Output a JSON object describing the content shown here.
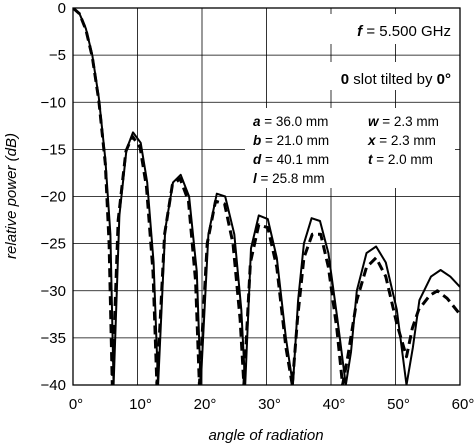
{
  "chart_data": {
    "type": "line",
    "title": "",
    "xlabel": "angle of radiation",
    "ylabel": "relative power (dB)",
    "xlim": [
      0,
      60
    ],
    "ylim": [
      -40,
      0
    ],
    "x_ticks": [
      "0°",
      "10°",
      "20°",
      "30°",
      "40°",
      "50°",
      "60°"
    ],
    "y_ticks": [
      "0",
      "−5",
      "−10",
      "−15",
      "−20",
      "−25",
      "−30",
      "−35",
      "−40"
    ],
    "grid": true,
    "frequency": {
      "symbol": "f",
      "eq": " = ",
      "value": "5.500 GHz"
    },
    "slot": {
      "count": "0",
      "middle": " slot tilted by ",
      "angle": "0°"
    },
    "params": [
      {
        "sym": "a",
        "val": " = 36.0 mm"
      },
      {
        "sym": "w",
        "val": " = 2.3 mm"
      },
      {
        "sym": "b",
        "val": " = 21.0 mm"
      },
      {
        "sym": "x",
        "val": " = 2.3 mm"
      },
      {
        "sym": "d",
        "val": " = 40.1 mm"
      },
      {
        "sym": "t",
        "val": " = 2.0 mm"
      },
      {
        "sym": "l",
        "val": " = 25.8 mm"
      }
    ],
    "series": [
      {
        "style": "solid",
        "x": [
          0,
          1,
          2,
          3,
          4,
          5,
          5.8,
          6.3,
          7.2,
          8.3,
          9.3,
          10.5,
          11.5,
          12.5,
          13.2,
          14.3,
          15.5,
          16.7,
          18.0,
          19.2,
          19.8,
          21.0,
          22.3,
          23.6,
          25.0,
          26.1,
          26.7,
          27.6,
          28.8,
          30.2,
          31.6,
          33.0,
          34.1,
          34.9,
          35.8,
          37.0,
          38.3,
          39.6,
          41.0,
          42.3,
          43.1,
          44.0,
          45.5,
          47.0,
          48.5,
          50.2,
          51.7,
          52.7,
          53.7,
          55.5,
          57.0,
          58.5,
          60.0
        ],
        "y": [
          0,
          -0.6,
          -2.2,
          -5.0,
          -9.5,
          -16.0,
          -24.0,
          -40,
          -22.0,
          -15.0,
          -13.2,
          -14.3,
          -18.5,
          -27.0,
          -40,
          -23.5,
          -18.5,
          -17.7,
          -20.0,
          -28.0,
          -40,
          -24.0,
          -19.7,
          -20.0,
          -24.0,
          -32.0,
          -40,
          -25.5,
          -22.0,
          -22.4,
          -26.5,
          -35.0,
          -40,
          -31.0,
          -25.0,
          -22.3,
          -22.6,
          -26.0,
          -33.0,
          -40,
          -36.5,
          -30.0,
          -26.0,
          -25.3,
          -27.0,
          -32.0,
          -40,
          -36.0,
          -31.0,
          -28.5,
          -27.8,
          -28.5,
          -29.6
        ]
      },
      {
        "style": "dashed",
        "x": [
          0,
          1,
          2,
          3,
          4,
          5,
          5.6,
          6.1,
          7.0,
          8.2,
          9.2,
          10.4,
          11.4,
          12.4,
          13.0,
          14.2,
          15.4,
          16.6,
          17.9,
          19.0,
          19.6,
          20.8,
          22.1,
          23.5,
          24.8,
          25.9,
          26.5,
          27.5,
          28.8,
          30.2,
          31.6,
          33.0,
          34.0,
          34.8,
          35.8,
          37.1,
          38.4,
          39.6,
          40.9,
          41.8,
          42.6,
          44.0,
          45.5,
          47.0,
          48.5,
          50.2,
          51.7,
          52.6,
          53.6,
          55.3,
          56.5,
          58.0,
          60.0
        ],
        "y": [
          0,
          -0.6,
          -2.3,
          -5.2,
          -9.8,
          -16.5,
          -25.0,
          -40,
          -22.5,
          -15.2,
          -13.6,
          -14.8,
          -19.0,
          -28.0,
          -40,
          -24.0,
          -18.8,
          -18.1,
          -20.5,
          -29.0,
          -40,
          -25.0,
          -20.5,
          -20.8,
          -25.0,
          -33.0,
          -40,
          -27.0,
          -23.0,
          -23.3,
          -27.5,
          -36.0,
          -40,
          -33.0,
          -26.5,
          -24.0,
          -24.0,
          -27.5,
          -34.0,
          -40,
          -37.0,
          -31.0,
          -27.5,
          -26.5,
          -28.5,
          -33.5,
          -37.0,
          -34.0,
          -32.0,
          -30.5,
          -30.0,
          -30.8,
          -32.5
        ]
      }
    ]
  }
}
